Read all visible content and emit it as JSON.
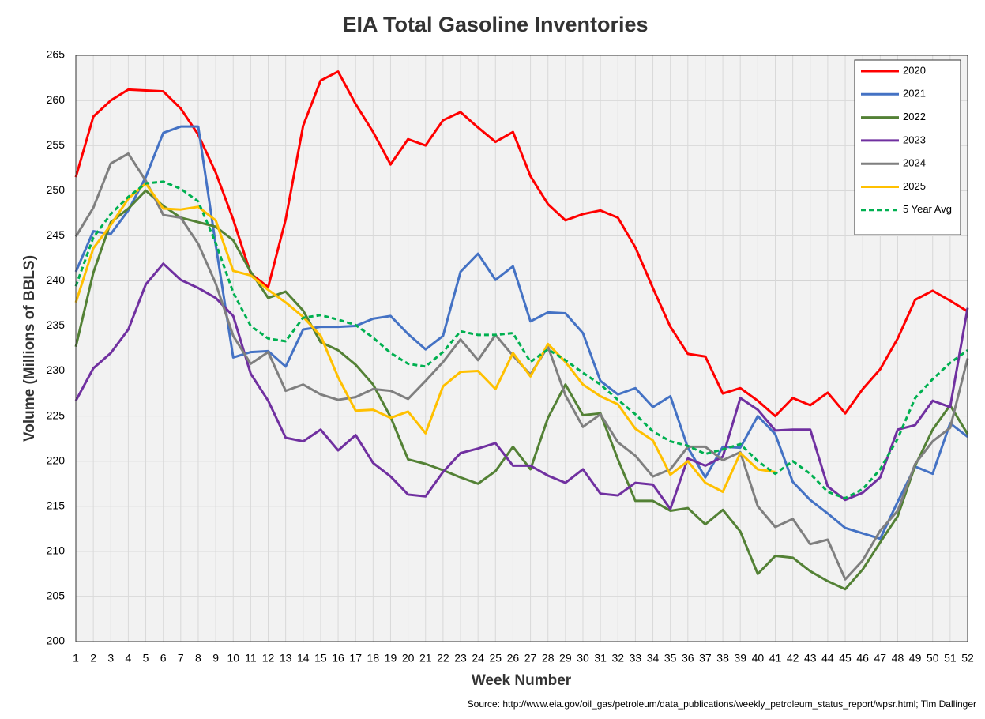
{
  "chart_data": {
    "type": "line",
    "title": "EIA Total Gasoline Inventories",
    "x_label": "Week Number",
    "y_label": "Volume (Millions of BBLS)",
    "source": "Source: http://www.eia.gov/oil_gas/petroleum/data_publications/weekly_petroleum_status_report/wpsr.html; Tim Dallinger",
    "x": [
      1,
      2,
      3,
      4,
      5,
      6,
      7,
      8,
      9,
      10,
      11,
      12,
      13,
      14,
      15,
      16,
      17,
      18,
      19,
      20,
      21,
      22,
      23,
      24,
      25,
      26,
      27,
      28,
      29,
      30,
      31,
      32,
      33,
      34,
      35,
      36,
      37,
      38,
      39,
      40,
      41,
      42,
      43,
      44,
      45,
      46,
      47,
      48,
      49,
      50,
      51,
      52
    ],
    "xlim": [
      1,
      52
    ],
    "xticks": [
      1,
      2,
      3,
      4,
      5,
      6,
      7,
      8,
      9,
      10,
      11,
      12,
      13,
      14,
      15,
      16,
      17,
      18,
      19,
      20,
      21,
      22,
      23,
      24,
      25,
      26,
      27,
      28,
      29,
      30,
      31,
      32,
      33,
      34,
      35,
      36,
      37,
      38,
      39,
      40,
      41,
      42,
      43,
      44,
      45,
      46,
      47,
      48,
      49,
      50,
      51,
      52
    ],
    "ylim": [
      200,
      265
    ],
    "yticks": [
      200,
      205,
      210,
      215,
      220,
      225,
      230,
      235,
      240,
      245,
      250,
      255,
      260,
      265
    ],
    "grid": true,
    "legend": "upper right",
    "series": [
      {
        "name": "2020",
        "color": "#ff0000",
        "style": "solid",
        "values": [
          251.5,
          258.2,
          260,
          261.2,
          261.1,
          261,
          259.1,
          256.2,
          252,
          246.8,
          240.8,
          239.3,
          246.8,
          257.2,
          262.2,
          263.2,
          259.6,
          256.5,
          252.9,
          255.7,
          255,
          257.8,
          258.7,
          257,
          255.4,
          256.5,
          251.6,
          248.5,
          246.7,
          247.4,
          247.8,
          247,
          243.7,
          239.2,
          234.9,
          231.9,
          231.6,
          227.5,
          228.1,
          226.7,
          225,
          227,
          226.2,
          227.6,
          225.3,
          228,
          230.2,
          233.6,
          237.9,
          238.9,
          237.8,
          236.6
        ]
      },
      {
        "name": "2021",
        "color": "#4472c4",
        "style": "solid",
        "values": [
          241,
          245.5,
          245.2,
          247.8,
          251.5,
          256.4,
          257.1,
          257.1,
          244,
          231.5,
          232.1,
          232.2,
          230.5,
          234.6,
          234.9,
          234.9,
          235,
          235.8,
          236.1,
          234.1,
          232.4,
          233.9,
          241,
          243,
          240.1,
          241.6,
          235.5,
          236.5,
          236.4,
          234.2,
          228.9,
          227.4,
          228.1,
          226,
          227.2,
          221.5,
          218.2,
          221.6,
          221.5,
          225,
          223,
          217.7,
          215.7,
          214.2,
          212.6,
          212,
          211.4,
          215.5,
          219.4,
          218.6,
          224.2,
          222.7
        ]
      },
      {
        "name": "2022",
        "color": "#538135",
        "style": "solid",
        "values": [
          232.7,
          240.9,
          246.5,
          248,
          250,
          248.3,
          247,
          246.5,
          246,
          244.5,
          241,
          238.1,
          238.8,
          236.7,
          233.2,
          232.3,
          230.7,
          228.5,
          224.9,
          220.2,
          219.7,
          219,
          218.2,
          217.5,
          218.9,
          221.6,
          219.1,
          224.8,
          228.5,
          225.1,
          225.3,
          220.2,
          215.6,
          215.6,
          214.5,
          214.8,
          213,
          214.6,
          212.2,
          207.5,
          209.5,
          209.3,
          207.8,
          206.7,
          205.8,
          208,
          211,
          213.9,
          219.5,
          223.5,
          226.2,
          223
        ]
      },
      {
        "name": "2023",
        "color": "#7030a0",
        "style": "solid",
        "values": [
          226.7,
          230.3,
          232,
          234.6,
          239.6,
          241.9,
          240.1,
          239.2,
          238.1,
          236.1,
          229.7,
          226.7,
          222.6,
          222.2,
          223.5,
          221.2,
          222.9,
          219.8,
          218.3,
          216.3,
          216.1,
          218.8,
          220.9,
          221.4,
          222,
          219.5,
          219.5,
          218.4,
          217.6,
          219.1,
          216.4,
          216.2,
          217.6,
          217.4,
          214.7,
          220.3,
          219.5,
          220.5,
          227,
          225.7,
          223.4,
          223.5,
          223.5,
          217.2,
          215.7,
          216.5,
          218.2,
          223.5,
          224,
          226.7,
          226,
          237
        ]
      },
      {
        "name": "2024",
        "color": "#7f7f7f",
        "style": "solid",
        "values": [
          244.9,
          248.1,
          253,
          254.1,
          251.1,
          247.3,
          247,
          244.1,
          239.7,
          233.9,
          230.8,
          232.1,
          227.8,
          228.5,
          227.4,
          226.8,
          227.1,
          228,
          227.8,
          226.9,
          228.9,
          231,
          233.5,
          231.2,
          234,
          231.7,
          229.6,
          232.7,
          227.3,
          223.8,
          225.2,
          222.1,
          220.6,
          218.3,
          219.1,
          221.6,
          221.6,
          220.1,
          221,
          215,
          212.7,
          213.6,
          210.8,
          211.3,
          206.9,
          209,
          212.3,
          214.5,
          219.7,
          222.2,
          223.7,
          231.4
        ]
      },
      {
        "name": "2025",
        "color": "#ffc000",
        "style": "solid",
        "values": [
          237.6,
          243.6,
          246.2,
          249.1,
          250.8,
          248,
          247.9,
          248.2,
          246.7,
          241.1,
          240.6,
          239,
          237.6,
          236,
          233.9,
          229.3,
          225.6,
          225.7,
          224.8,
          225.5,
          223.1,
          228.3,
          229.9,
          230,
          228,
          232,
          229.4,
          233,
          231,
          228.5,
          227.2,
          226.3,
          223.6,
          222.3,
          218.5,
          220,
          217.6,
          216.6,
          220.9,
          219.1,
          218.8,
          null,
          null,
          null,
          null,
          null,
          null,
          null,
          null,
          null,
          null,
          null
        ]
      },
      {
        "name": "5 Year Avg",
        "color": "#00b050",
        "style": "dashed",
        "values": [
          239.4,
          244.8,
          247.4,
          249.3,
          250.8,
          251,
          250.2,
          248.8,
          244.2,
          238.7,
          235,
          233.6,
          233.3,
          235.9,
          236.2,
          235.7,
          235.1,
          233.7,
          232,
          230.8,
          230.5,
          232.1,
          234.4,
          234,
          234,
          234.2,
          231,
          232.4,
          231.2,
          229.8,
          228.5,
          226.8,
          225.2,
          223.3,
          222.2,
          221.7,
          220.8,
          221.3,
          221.9,
          220,
          218.6,
          220,
          218.6,
          216.6,
          215.9,
          216.9,
          219.1,
          222.5,
          227,
          229.1,
          230.9,
          232.3
        ]
      }
    ]
  }
}
